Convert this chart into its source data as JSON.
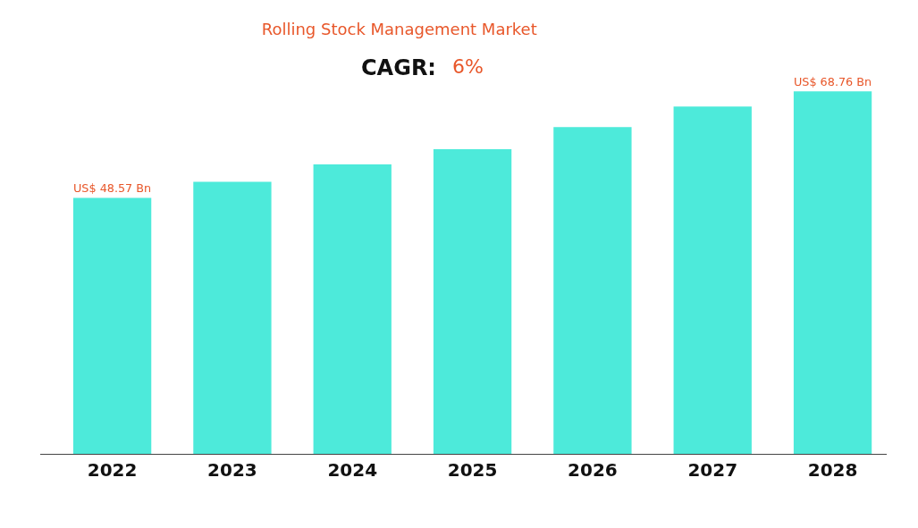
{
  "chart_data": {
    "type": "bar",
    "title": "Rolling Stock Management Market",
    "categories": [
      "2022",
      "2023",
      "2024",
      "2025",
      "2026",
      "2027",
      "2028"
    ],
    "values": [
      48.57,
      51.6,
      54.9,
      57.8,
      62.0,
      65.9,
      68.76
    ],
    "color": "#4deada",
    "value_labels": [
      "US$ 48.57 Bn",
      null,
      null,
      null,
      null,
      null,
      "US$ 68.76 Bn"
    ],
    "annotations": [
      "CAGR:",
      "6%"
    ],
    "grid": false
  }
}
